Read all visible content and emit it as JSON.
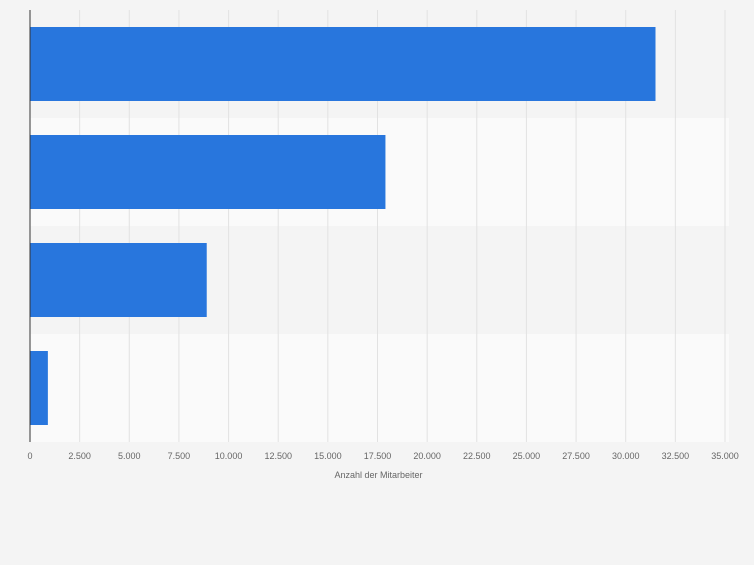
{
  "chart_data": {
    "type": "bar",
    "orientation": "horizontal",
    "categories": [
      "",
      "",
      "",
      ""
    ],
    "values": [
      31500,
      17900,
      8900,
      900
    ],
    "xlabel": "Anzahl der Mitarbeiter",
    "ylabel": "",
    "xlim": [
      0,
      35000
    ],
    "xticks": [
      0,
      2500,
      5000,
      7500,
      10000,
      12500,
      15000,
      17500,
      20000,
      22500,
      25000,
      27500,
      30000,
      32500,
      35000
    ],
    "xtick_labels": [
      "0",
      "2.500",
      "5.000",
      "7.500",
      "10.000",
      "12.500",
      "15.000",
      "17.500",
      "20.000",
      "22.500",
      "25.000",
      "27.500",
      "30.000",
      "32.500",
      "35.000"
    ],
    "grid": true,
    "legend": "none",
    "colors": {
      "bar": "#2876dd",
      "band_dark": "#f4f4f4",
      "band_light": "#fafafa",
      "grid": "#e2e2e2",
      "axis": "#333333",
      "tick_text": "#666666",
      "background": "#f4f4f4"
    }
  }
}
